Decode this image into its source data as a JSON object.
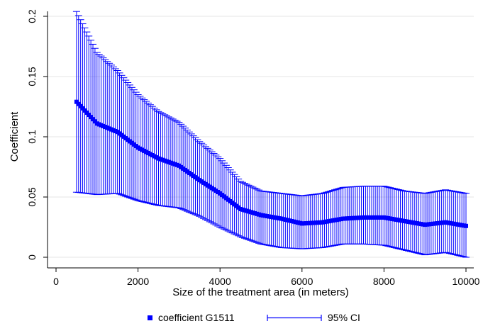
{
  "chart_data": {
    "type": "scatter",
    "xlabel": "Size of the treatment area (in meters)",
    "ylabel": "Coefficient",
    "xlim": [
      0,
      10000
    ],
    "ylim": [
      0,
      0.2
    ],
    "xticks": [
      "0",
      "2000",
      "4000",
      "6000",
      "8000",
      "10000"
    ],
    "xtick_values": [
      0,
      2000,
      4000,
      6000,
      8000,
      10000
    ],
    "yticks": [
      "0",
      "0.05",
      "0.1",
      "0.15",
      "0.2"
    ],
    "ytick_values": [
      0,
      0.05,
      0.1,
      0.15,
      0.2
    ],
    "grid": true,
    "legend_position": "bottom",
    "legend": [
      "coefficient G1511",
      "95% CI"
    ],
    "colors": {
      "series": "#0000ff",
      "grid": "#e6e6e6"
    },
    "series": [
      {
        "name": "coefficient G1511",
        "x": [
          500,
          1000,
          1500,
          2000,
          2500,
          3000,
          3500,
          4000,
          4500,
          5000,
          5500,
          6000,
          6500,
          7000,
          7500,
          8000,
          8500,
          9000,
          9500,
          10000
        ],
        "y": [
          0.129,
          0.111,
          0.104,
          0.091,
          0.082,
          0.076,
          0.064,
          0.053,
          0.04,
          0.035,
          0.032,
          0.028,
          0.029,
          0.032,
          0.033,
          0.033,
          0.03,
          0.027,
          0.029,
          0.026
        ],
        "ci_low": [
          0.054,
          0.052,
          0.053,
          0.047,
          0.043,
          0.041,
          0.034,
          0.025,
          0.017,
          0.011,
          0.008,
          0.007,
          0.008,
          0.011,
          0.011,
          0.01,
          0.006,
          0.002,
          0.004,
          0.0
        ],
        "ci_high": [
          0.204,
          0.17,
          0.155,
          0.135,
          0.121,
          0.112,
          0.096,
          0.082,
          0.063,
          0.055,
          0.053,
          0.051,
          0.053,
          0.058,
          0.059,
          0.059,
          0.055,
          0.053,
          0.056,
          0.053
        ]
      }
    ]
  }
}
